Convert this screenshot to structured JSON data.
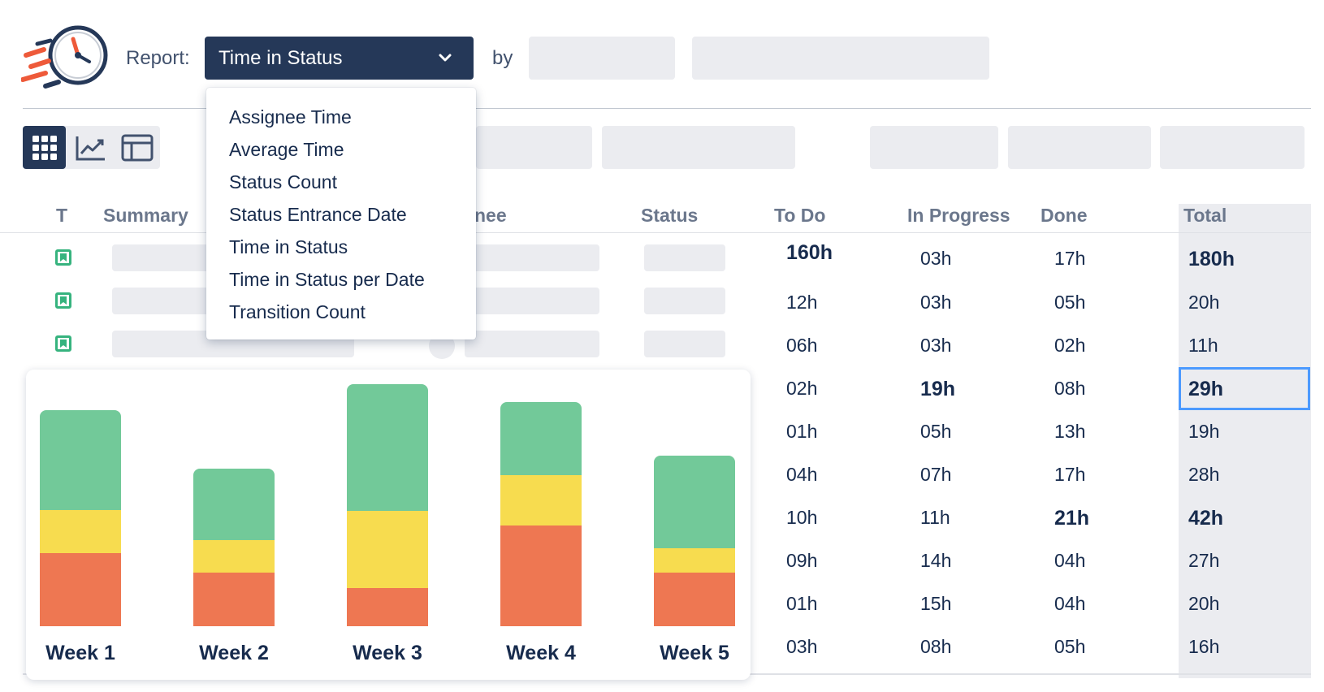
{
  "header": {
    "report_label": "Report:",
    "report_selected": "Time in Status",
    "by_label": "by"
  },
  "dropdown": {
    "options": [
      "Assignee Time",
      "Average Time",
      "Status Count",
      "Status Entrance Date",
      "Time in Status",
      "Time in Status per Date",
      "Transition Count"
    ]
  },
  "view_toggles": [
    "grid-view",
    "chart-view",
    "table-view"
  ],
  "table": {
    "columns": {
      "type": "T",
      "summary": "Summary",
      "assignee": "nee",
      "status": "Status",
      "todo": "To Do",
      "in_progress": "In Progress",
      "done": "Done",
      "total": "Total"
    },
    "rows": [
      {
        "todo": "160h",
        "in_progress": "03h",
        "done": "17h",
        "total": "180h"
      },
      {
        "todo": "12h",
        "in_progress": "03h",
        "done": "05h",
        "total": "20h"
      },
      {
        "todo": "06h",
        "in_progress": "03h",
        "done": "02h",
        "total": "11h"
      },
      {
        "todo": "02h",
        "in_progress": "19h",
        "done": "08h",
        "total": "29h"
      },
      {
        "todo": "01h",
        "in_progress": "05h",
        "done": "13h",
        "total": "19h"
      },
      {
        "todo": "04h",
        "in_progress": "07h",
        "done": "17h",
        "total": "28h"
      },
      {
        "todo": "10h",
        "in_progress": "11h",
        "done": "21h",
        "total": "42h"
      },
      {
        "todo": "09h",
        "in_progress": "14h",
        "done": "04h",
        "total": "27h"
      },
      {
        "todo": "01h",
        "in_progress": "15h",
        "done": "04h",
        "total": "20h"
      },
      {
        "todo": "03h",
        "in_progress": "08h",
        "done": "05h",
        "total": "16h"
      }
    ]
  },
  "colors": {
    "accent_dark": "#253858",
    "green": "#72c999",
    "yellow": "#f7dc4f",
    "orange": "#ee7752",
    "selection": "#4c9aff"
  },
  "chart_data": {
    "type": "bar",
    "stacked": true,
    "categories": [
      "Week 1",
      "Week 2",
      "Week 3",
      "Week 4",
      "Week 5"
    ],
    "series": [
      {
        "color": "#ee7752",
        "values": [
          90,
          66,
          47,
          124,
          66
        ]
      },
      {
        "color": "#f7dc4f",
        "values": [
          53,
          40,
          95,
          62,
          30
        ]
      },
      {
        "color": "#72c999",
        "values": [
          123,
          88,
          156,
          90,
          114
        ]
      }
    ],
    "ylim": [
      0,
      300
    ],
    "grid": false,
    "legend": "none"
  }
}
